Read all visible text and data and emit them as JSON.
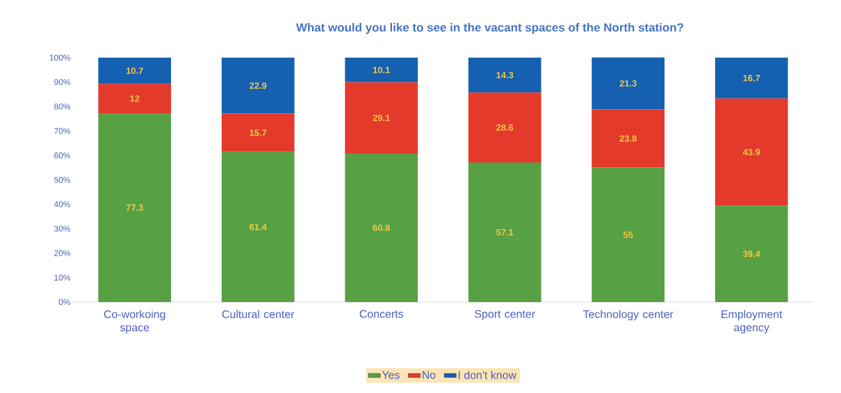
{
  "chart_data": {
    "type": "bar",
    "stacked": true,
    "title": "What would you like to see in the vacant spaces of the North station?",
    "categories": [
      "Co-workoing space",
      "Cultural center",
      "Concerts",
      "Sport center",
      "Technology center",
      "Employment agency"
    ],
    "series": [
      {
        "name": "Yes",
        "color": "#58a044",
        "values": [
          77.3,
          61.4,
          60.8,
          57.1,
          55,
          39.4
        ]
      },
      {
        "name": "No",
        "color": "#e33a2c",
        "values": [
          12,
          15.7,
          29.1,
          28.6,
          23.8,
          43.9
        ]
      },
      {
        "name": "I don't know",
        "color": "#1560b0",
        "values": [
          10.7,
          22.9,
          10.1,
          14.3,
          21.3,
          16.7
        ]
      }
    ],
    "ylim": [
      0,
      100
    ],
    "yticks": [
      {
        "value": 0,
        "label": "0%"
      },
      {
        "value": 10,
        "label": "10%"
      },
      {
        "value": 20,
        "label": "20%"
      },
      {
        "value": 30,
        "label": "30%"
      },
      {
        "value": 40,
        "label": "40%"
      },
      {
        "value": 50,
        "label": "50%"
      },
      {
        "value": 60,
        "label": "60%"
      },
      {
        "value": 70,
        "label": "70%"
      },
      {
        "value": 80,
        "label": "80%"
      },
      {
        "value": 90,
        "label": "90%"
      },
      {
        "value": 100,
        "label": "100%"
      }
    ],
    "data_labels": true,
    "legend": "bottom",
    "grid": false
  }
}
